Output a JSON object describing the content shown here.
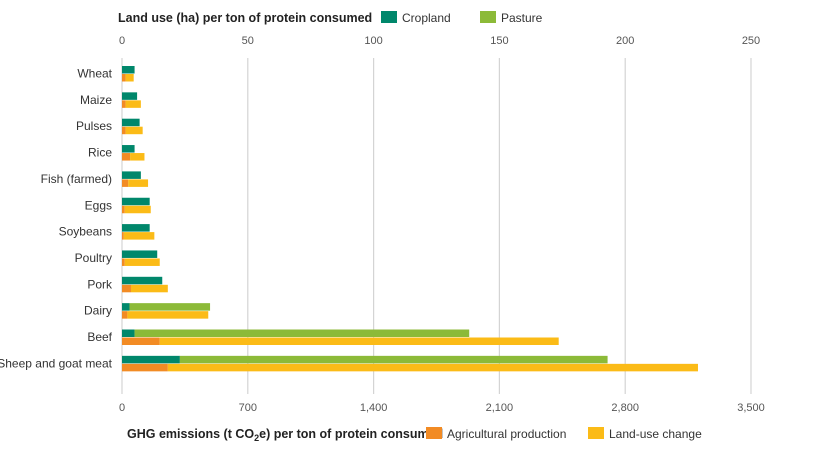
{
  "chart_data": {
    "type": "bar",
    "top_axis": {
      "title": "Land use (ha) per ton of protein consumed",
      "range": [
        0,
        250
      ],
      "ticks": [
        0,
        50,
        100,
        150,
        200,
        250
      ],
      "tick_labels": [
        "0",
        "50",
        "100",
        "150",
        "200",
        "250"
      ]
    },
    "bottom_axis": {
      "title_main": "GHG emissions (t CO",
      "title_sub": "2",
      "title_end": "e) per ton of protein consumed",
      "range": [
        0,
        3500
      ],
      "ticks": [
        0,
        700,
        1400,
        2100,
        2800,
        3500
      ],
      "tick_labels": [
        "0",
        "700",
        "1,400",
        "2,100",
        "2,800",
        "3,500"
      ]
    },
    "categories": [
      "Wheat",
      "Maize",
      "Pulses",
      "Rice",
      "Fish (farmed)",
      "Eggs",
      "Soybeans",
      "Poultry",
      "Pork",
      "Dairy",
      "Beef",
      "Sheep and goat meat"
    ],
    "land_use_series": [
      {
        "name": "Cropland",
        "color": "#00876b",
        "values": [
          5,
          6,
          7,
          5,
          7.5,
          11,
          11,
          14,
          16,
          3,
          5,
          23
        ]
      },
      {
        "name": "Pasture",
        "color": "#8cba38",
        "values": [
          0,
          0,
          0,
          0,
          0,
          0,
          0,
          0,
          0,
          32,
          133,
          170
        ]
      }
    ],
    "ghg_series": [
      {
        "name": "Agricultural production",
        "color": "#f28b24",
        "values": [
          20,
          20,
          20,
          45,
          35,
          15,
          10,
          15,
          50,
          30,
          210,
          255
        ]
      },
      {
        "name": "Land-use change",
        "color": "#fbbb17",
        "values": [
          45,
          85,
          95,
          80,
          110,
          145,
          170,
          195,
          205,
          450,
          2220,
          2950
        ]
      }
    ],
    "grid": true,
    "legend_placement": "top and bottom"
  }
}
